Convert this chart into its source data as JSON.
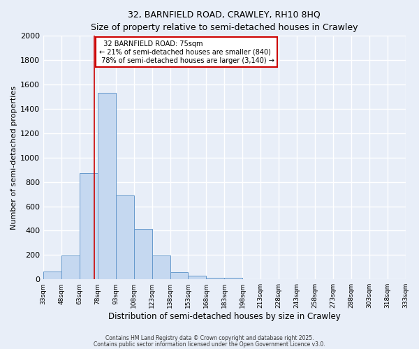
{
  "title_line1": "32, BARNFIELD ROAD, CRAWLEY, RH10 8HQ",
  "title_line2": "Size of property relative to semi-detached houses in Crawley",
  "xlabel": "Distribution of semi-detached houses by size in Crawley",
  "ylabel": "Number of semi-detached properties",
  "bar_edges": [
    33,
    48,
    63,
    78,
    93,
    108,
    123,
    138,
    153,
    168,
    183,
    198,
    213,
    228,
    243,
    258,
    273,
    288,
    303,
    318,
    333
  ],
  "bar_heights": [
    65,
    195,
    870,
    1530,
    690,
    415,
    195,
    60,
    30,
    15,
    10,
    0,
    0,
    0,
    0,
    0,
    0,
    0,
    0,
    0
  ],
  "bar_color": "#c5d8f0",
  "bar_edgecolor": "#6699cc",
  "property_size": 75,
  "red_line_color": "#cc0000",
  "annotation_text": "  32 BARNFIELD ROAD: 75sqm\n← 21% of semi-detached houses are smaller (840)\n 78% of semi-detached houses are larger (3,140) →",
  "annotation_box_edgecolor": "#cc0000",
  "annotation_box_facecolor": "#ffffff",
  "ylim": [
    0,
    2000
  ],
  "yticks": [
    0,
    200,
    400,
    600,
    800,
    1000,
    1200,
    1400,
    1600,
    1800,
    2000
  ],
  "bg_color": "#e8eef8",
  "grid_color": "#ffffff",
  "footer_line1": "Contains HM Land Registry data © Crown copyright and database right 2025.",
  "footer_line2": "Contains public sector information licensed under the Open Government Licence v3.0."
}
